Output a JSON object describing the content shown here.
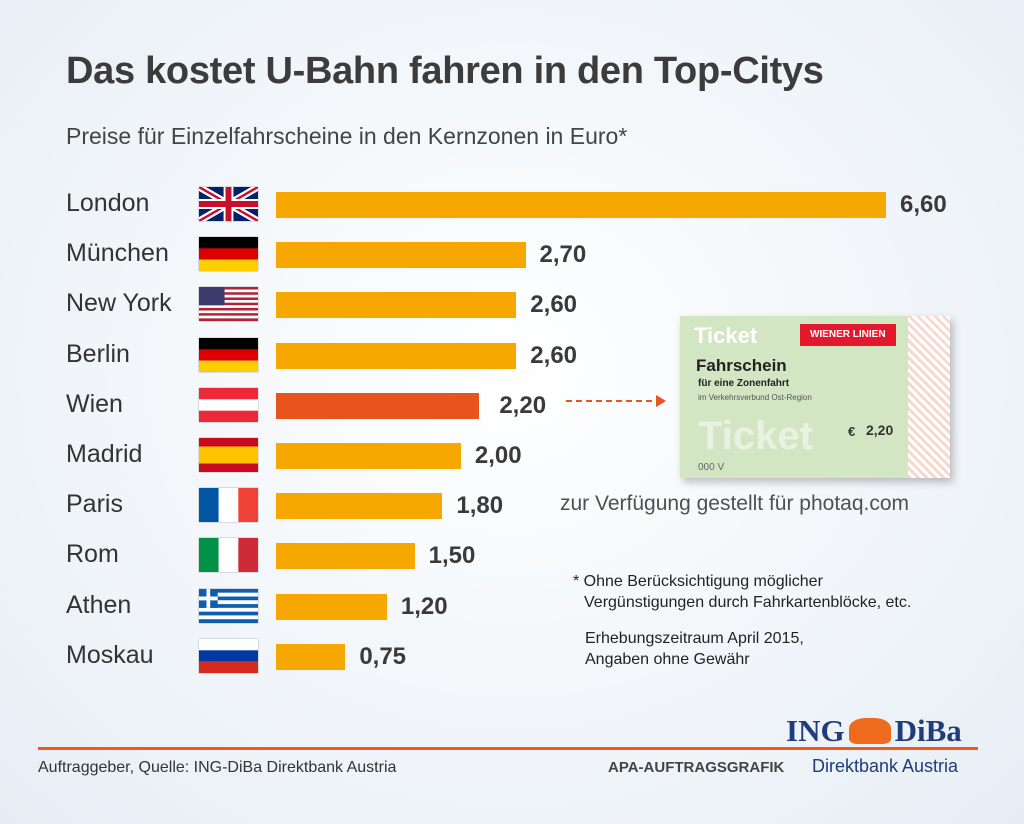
{
  "chart_data": {
    "type": "bar",
    "orientation": "horizontal",
    "title": "Das kostet U-Bahn fahren in den Top-Citys",
    "subtitle": "Preise für Einzelfahrscheine in den Kernzonen in Euro*",
    "categories": [
      "London",
      "München",
      "New York",
      "Berlin",
      "Wien",
      "Madrid",
      "Paris",
      "Rom",
      "Athen",
      "Moskau"
    ],
    "flags": [
      "uk",
      "de",
      "us",
      "de",
      "at",
      "es",
      "fr",
      "it",
      "gr",
      "ru"
    ],
    "values": [
      6.6,
      2.7,
      2.6,
      2.6,
      2.2,
      2.0,
      1.8,
      1.5,
      1.2,
      0.75
    ],
    "labels": [
      "6,60",
      "2,70",
      "2,60",
      "2,60",
      "2,20",
      "2,00",
      "1,80",
      "1,50",
      "1,20",
      "0,75"
    ],
    "highlight": "Wien",
    "colors": {
      "bar": "#f7a800",
      "highlight": "#e8541e"
    },
    "xlim": [
      0,
      6.6
    ]
  },
  "ticket": {
    "word": "Ticket",
    "brand": "WIENER LINIEN",
    "title": "Fahrschein",
    "line2": "für eine Zonenfahrt",
    "line3": "im Verkehrsverbund Ost-Region",
    "currency": "€",
    "price": "2,20",
    "number": "000  V"
  },
  "watermark": "zur Verfügung gestellt für photaq.com",
  "footnote": {
    "line1": "* Ohne Berücksichtigung möglicher",
    "line2": "Vergünstigungen durch Fahrkartenblöcke, etc."
  },
  "period": {
    "line1": "Erhebungszeitraum April 2015,",
    "line2": "Angaben ohne Gewähr"
  },
  "footer": {
    "source": "Auftraggeber, Quelle: ING-DiBa Direktbank Austria",
    "apa": "APA-AUFTRAGSGRAFIK",
    "logo_left": "ING",
    "logo_right": "DiBa",
    "direkt": "Direktbank Austria"
  }
}
